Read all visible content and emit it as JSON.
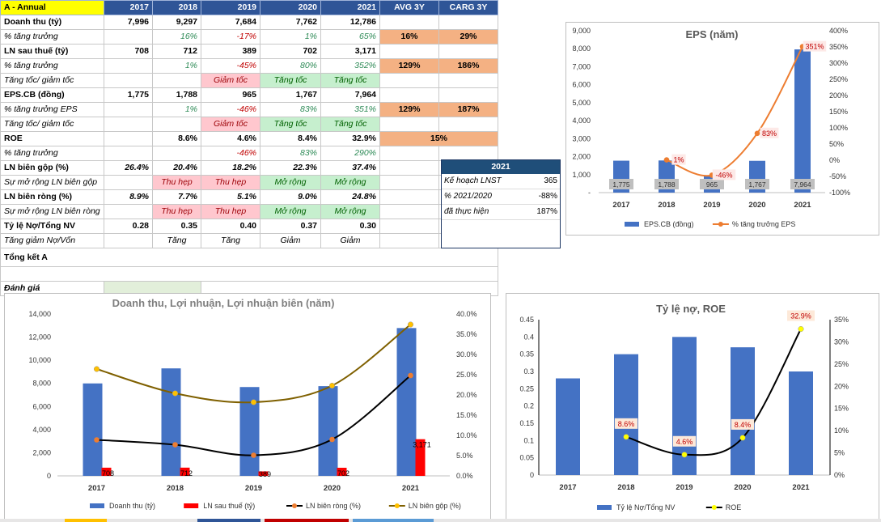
{
  "header": {
    "title": "A - Annual",
    "years": [
      "2017",
      "2018",
      "2019",
      "2020",
      "2021"
    ],
    "avg": "AVG 3Y",
    "cagr": "CARG 3Y"
  },
  "rows": [
    {
      "label": "Doanh thu (tỷ)",
      "vals": [
        "7,996",
        "9,297",
        "7,684",
        "7,762",
        "12,786"
      ],
      "avg": "",
      "cagr": ""
    },
    {
      "label": "% tăng trưởng",
      "vals": [
        "",
        "16%",
        "-17%",
        "1%",
        "65%"
      ],
      "avg": "16%",
      "cagr": "29%"
    },
    {
      "label": "LN sau thuế (tỷ)",
      "vals": [
        "708",
        "712",
        "389",
        "702",
        "3,171"
      ],
      "avg": "",
      "cagr": ""
    },
    {
      "label": "% tăng trưởng",
      "vals": [
        "",
        "1%",
        "-45%",
        "80%",
        "352%"
      ],
      "avg": "129%",
      "cagr": "186%"
    },
    {
      "label": "Tăng tốc/ giảm tốc",
      "vals": [
        "",
        "",
        "Giảm tốc",
        "Tăng tốc",
        "Tăng tốc"
      ],
      "avg": "",
      "cagr": ""
    },
    {
      "label": "EPS.CB (đồng)",
      "vals": [
        "1,775",
        "1,788",
        "965",
        "1,767",
        "7,964"
      ],
      "avg": "",
      "cagr": ""
    },
    {
      "label": "% tăng trưởng EPS",
      "vals": [
        "",
        "1%",
        "-46%",
        "83%",
        "351%"
      ],
      "avg": "129%",
      "cagr": "187%"
    },
    {
      "label": "Tăng tốc/ giảm tốc",
      "vals": [
        "",
        "",
        "Giảm tốc",
        "Tăng tốc",
        "Tăng tốc"
      ],
      "avg": "",
      "cagr": ""
    },
    {
      "label": "ROE",
      "vals": [
        "",
        "8.6%",
        "4.6%",
        "8.4%",
        "32.9%"
      ],
      "avg": "15%",
      "cagr": ""
    },
    {
      "label": "% tăng trưởng",
      "vals": [
        "",
        "",
        "-46%",
        "83%",
        "290%"
      ],
      "avg": "",
      "cagr": ""
    },
    {
      "label": "LN biên gộp (%)",
      "vals": [
        "26.4%",
        "20.4%",
        "18.2%",
        "22.3%",
        "37.4%"
      ],
      "avg": "",
      "cagr": ""
    },
    {
      "label": "Sự mở rộng LN biên gộp",
      "vals": [
        "",
        "Thu hẹp",
        "Thu hẹp",
        "Mở rộng",
        "Mở rộng"
      ],
      "avg": "",
      "cagr": ""
    },
    {
      "label": "LN biên ròng (%)",
      "vals": [
        "8.9%",
        "7.7%",
        "5.1%",
        "9.0%",
        "24.8%"
      ],
      "avg": "",
      "cagr": ""
    },
    {
      "label": "Sự mở rộng LN biên ròng",
      "vals": [
        "",
        "Thu hẹp",
        "Thu hẹp",
        "Mở rộng",
        "Mở rộng"
      ],
      "avg": "",
      "cagr": ""
    },
    {
      "label": "Tỷ lệ Nợ/Tổng NV",
      "vals": [
        "0.28",
        "0.35",
        "0.40",
        "0.37",
        "0.30"
      ],
      "avg": "",
      "cagr": ""
    },
    {
      "label": "Tăng giảm Nợ/Vốn",
      "vals": [
        "",
        "Tăng",
        "Tăng",
        "Giảm",
        "Giảm"
      ],
      "avg": "",
      "cagr": ""
    }
  ],
  "summary": {
    "title": "Tổng kết A",
    "eval": "Đánh giá"
  },
  "plan": {
    "year": "2021",
    "rows": [
      {
        "label": "Kế hoạch LNST",
        "value": "365"
      },
      {
        "label": "% 2021/2020",
        "value": "-88%"
      },
      {
        "label": "đã thực hiện",
        "value": "187%"
      }
    ]
  },
  "chart_data": [
    {
      "type": "bar",
      "title": "EPS (năm)",
      "categories": [
        "2017",
        "2018",
        "2019",
        "2020",
        "2021"
      ],
      "series": [
        {
          "name": "EPS.CB (đồng)",
          "kind": "bar",
          "values": [
            1775,
            1788,
            965,
            1767,
            7964
          ],
          "labels": [
            "1,775",
            "1,788",
            "965",
            "1,767",
            "7,964"
          ],
          "color": "#4472c4"
        },
        {
          "name": "% tăng trưởng EPS",
          "kind": "line",
          "axis": "right",
          "values": [
            null,
            1,
            -46,
            83,
            351
          ],
          "labels": [
            "",
            "1%",
            "-46%",
            "83%",
            "351%"
          ],
          "color": "#ed7d31"
        }
      ],
      "ylim": [
        0,
        9000
      ],
      "y_ticks": [
        "-",
        "1,000",
        "2,000",
        "3,000",
        "4,000",
        "5,000",
        "6,000",
        "7,000",
        "8,000",
        "9,000"
      ],
      "y2lim": [
        -100,
        400
      ],
      "y2_ticks": [
        "-100%",
        "-50%",
        "0%",
        "50%",
        "100%",
        "150%",
        "200%",
        "250%",
        "300%",
        "350%",
        "400%"
      ],
      "legend": "bottom"
    },
    {
      "type": "bar",
      "title": "Doanh thu, Lợi nhuận, Lợi nhuận biên (năm)",
      "categories": [
        "2017",
        "2018",
        "2019",
        "2020",
        "2021"
      ],
      "series": [
        {
          "name": "Doanh thu (tỷ)",
          "kind": "bar",
          "values": [
            7996,
            9297,
            7684,
            7762,
            12786
          ],
          "color": "#4472c4"
        },
        {
          "name": "LN sau thuế (tỷ)",
          "kind": "bar",
          "values": [
            708,
            712,
            389,
            702,
            3171
          ],
          "labels": [
            "708",
            "712",
            "389",
            "702",
            "3,171"
          ],
          "color": "#ff0000"
        },
        {
          "name": "LN biên ròng (%)",
          "kind": "line",
          "axis": "right",
          "values": [
            8.9,
            7.7,
            5.1,
            9.0,
            24.8
          ],
          "color": "#000000"
        },
        {
          "name": "LN biên gộp (%)",
          "kind": "line",
          "axis": "right",
          "values": [
            26.4,
            20.4,
            18.2,
            22.3,
            37.4
          ],
          "color": "#7f6000"
        }
      ],
      "ylim": [
        0,
        14000
      ],
      "y_ticks": [
        "0",
        "2,000",
        "4,000",
        "6,000",
        "8,000",
        "10,000",
        "12,000",
        "14,000"
      ],
      "y2lim": [
        0,
        40
      ],
      "y2_ticks": [
        "0.0%",
        "5.0%",
        "10.0%",
        "15.0%",
        "20.0%",
        "25.0%",
        "30.0%",
        "35.0%",
        "40.0%"
      ],
      "legend": "bottom"
    },
    {
      "type": "bar",
      "title": "Tỷ lệ nợ, ROE",
      "categories": [
        "2017",
        "2018",
        "2019",
        "2020",
        "2021"
      ],
      "series": [
        {
          "name": "Tỷ lệ Nợ/Tổng NV",
          "kind": "bar",
          "values": [
            0.28,
            0.35,
            0.4,
            0.37,
            0.3
          ],
          "color": "#4472c4"
        },
        {
          "name": "ROE",
          "kind": "line",
          "axis": "right",
          "values": [
            null,
            8.6,
            4.6,
            8.4,
            32.9
          ],
          "labels": [
            "",
            "8.6%",
            "4.6%",
            "8.4%",
            "32.9%"
          ],
          "color": "#000000"
        }
      ],
      "ylim": [
        0,
        0.45
      ],
      "y_ticks": [
        "0",
        "0.05",
        "0.1",
        "0.15",
        "0.2",
        "0.25",
        "0.3",
        "0.35",
        "0.4",
        "0.45"
      ],
      "y2lim": [
        0,
        35
      ],
      "y2_ticks": [
        "0%",
        "5%",
        "10%",
        "15%",
        "20%",
        "25%",
        "30%",
        "35%"
      ],
      "legend": "bottom"
    }
  ]
}
